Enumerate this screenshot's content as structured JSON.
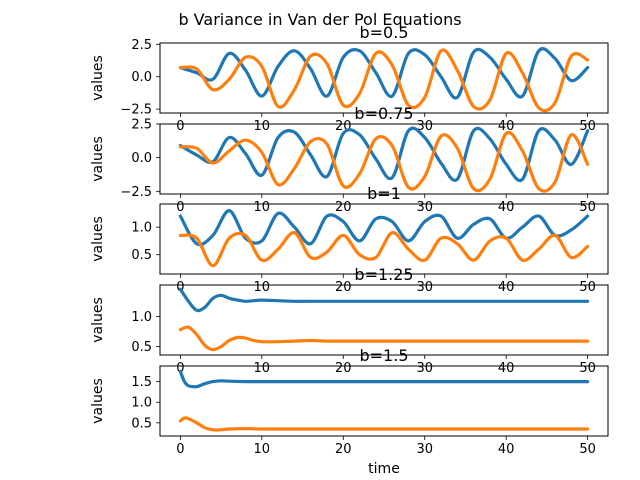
{
  "figure_title": "b Variance in Van der Pol Equations",
  "colors": {
    "series_0": "#1f77b4",
    "series_1": "#ff7f0e"
  },
  "chart_data": [
    {
      "type": "line",
      "title": "b=0.5",
      "xlabel": "",
      "ylabel": "values",
      "xlim": [
        -2.5,
        52.5
      ],
      "ylim": [
        -2.8,
        2.6
      ],
      "xticks": [
        0,
        10,
        20,
        30,
        40,
        50
      ],
      "xtick_labels": [
        "0",
        "10",
        "20",
        "30",
        "40",
        "50"
      ],
      "yticks": [
        -2.5,
        0.0,
        2.5
      ],
      "ytick_labels": [
        "−2.5",
        "0.0",
        "2.5"
      ],
      "x": [
        0,
        2,
        4,
        6,
        8,
        10,
        12,
        14,
        16,
        18,
        20,
        22,
        24,
        26,
        28,
        30,
        32,
        34,
        36,
        38,
        40,
        42,
        44,
        46,
        48,
        50
      ],
      "series": [
        {
          "values": [
            0.7,
            0.3,
            -0.2,
            1.8,
            0.5,
            -1.5,
            0.8,
            2.0,
            0.6,
            -1.5,
            1.5,
            2.0,
            0.3,
            -1.5,
            1.8,
            1.7,
            0,
            -1.6,
            1.9,
            1.5,
            -0.2,
            -1.5,
            2.0,
            1.4,
            -0.3,
            0.7
          ]
        },
        {
          "values": [
            0.7,
            0.6,
            -1.0,
            -0.2,
            1.5,
            0.8,
            -2.3,
            -1.0,
            1.6,
            1.0,
            -2.2,
            -1.3,
            1.8,
            0.9,
            -2.2,
            -1.6,
            2.0,
            0.5,
            -2.3,
            -1.8,
            1.8,
            0.3,
            -2.4,
            -2.0,
            1.6,
            1.3
          ]
        }
      ]
    },
    {
      "type": "line",
      "title": "b=0.75",
      "xlabel": "",
      "ylabel": "values",
      "xlim": [
        -2.5,
        52.5
      ],
      "ylim": [
        -2.7,
        2.5
      ],
      "xticks": [
        0,
        10,
        20,
        30,
        40,
        50
      ],
      "xtick_labels": [
        "0",
        "10",
        "20",
        "30",
        "40",
        "50"
      ],
      "yticks": [
        -2.5,
        0.0,
        2.5
      ],
      "ytick_labels": [
        "−2.5",
        "0.0",
        "2.5"
      ],
      "x": [
        0,
        2,
        4,
        6,
        8,
        10,
        12,
        14,
        16,
        18,
        20,
        22,
        24,
        26,
        28,
        30,
        32,
        34,
        36,
        38,
        40,
        42,
        44,
        46,
        48,
        50
      ],
      "series": [
        {
          "values": [
            0.9,
            0.2,
            -0.3,
            1.5,
            0.3,
            -1.3,
            1.5,
            1.9,
            0.2,
            -1.4,
            1.8,
            1.7,
            -0.1,
            -1.5,
            2.0,
            1.5,
            -0.4,
            -1.6,
            2.0,
            1.4,
            -0.5,
            -1.6,
            2.0,
            1.3,
            -0.5,
            2.0
          ]
        },
        {
          "values": [
            0.8,
            0.7,
            -0.4,
            0.5,
            1.3,
            0.4,
            -2.0,
            -0.8,
            1.2,
            1.0,
            -2.1,
            -1.2,
            1.4,
            0.9,
            -2.2,
            -1.4,
            1.6,
            0.7,
            -2.3,
            -1.6,
            1.8,
            0.5,
            -2.3,
            -1.8,
            1.7,
            -0.5
          ]
        }
      ]
    },
    {
      "type": "line",
      "title": "b=1",
      "xlabel": "",
      "ylabel": "values",
      "xlim": [
        -2.5,
        52.5
      ],
      "ylim": [
        0.15,
        1.42
      ],
      "xticks": [
        0,
        10,
        20,
        30,
        40,
        50
      ],
      "xtick_labels": [
        "0",
        "10",
        "20",
        "30",
        "40",
        "50"
      ],
      "yticks": [
        0.5,
        1.0
      ],
      "ytick_labels": [
        "0.5",
        "1.0"
      ],
      "x": [
        0,
        2,
        4,
        6,
        8,
        10,
        12,
        14,
        16,
        18,
        20,
        22,
        24,
        26,
        28,
        30,
        32,
        34,
        36,
        38,
        40,
        42,
        44,
        46,
        48,
        50
      ],
      "series": [
        {
          "values": [
            1.2,
            0.7,
            0.85,
            1.3,
            0.8,
            0.75,
            1.25,
            1.0,
            0.7,
            1.2,
            1.1,
            0.75,
            1.15,
            1.1,
            0.75,
            1.1,
            1.2,
            0.8,
            1.05,
            1.15,
            0.8,
            1.0,
            1.2,
            0.85,
            0.95,
            1.2
          ]
        },
        {
          "values": [
            0.85,
            0.8,
            0.3,
            0.8,
            0.85,
            0.4,
            0.6,
            0.9,
            0.45,
            0.55,
            0.85,
            0.5,
            0.45,
            0.9,
            0.6,
            0.4,
            0.8,
            0.7,
            0.4,
            0.75,
            0.8,
            0.4,
            0.6,
            0.85,
            0.45,
            0.65
          ]
        }
      ]
    },
    {
      "type": "line",
      "title": "b=1.25",
      "xlabel": "",
      "ylabel": "values",
      "xlim": [
        -2.5,
        52.5
      ],
      "ylim": [
        0.36,
        1.52
      ],
      "xticks": [
        0,
        10,
        20,
        30,
        40,
        50
      ],
      "xtick_labels": [
        "0",
        "10",
        "20",
        "30",
        "40",
        "50"
      ],
      "yticks": [
        0.5,
        1.0
      ],
      "ytick_labels": [
        "0.5",
        "1.0"
      ],
      "x": [
        0,
        1,
        2,
        3,
        4,
        5,
        6,
        7,
        8,
        9,
        10,
        12,
        14,
        16,
        18,
        20,
        25,
        30,
        35,
        40,
        45,
        50
      ],
      "series": [
        {
          "values": [
            1.45,
            1.25,
            1.1,
            1.15,
            1.3,
            1.35,
            1.3,
            1.27,
            1.25,
            1.26,
            1.27,
            1.26,
            1.25,
            1.25,
            1.25,
            1.25,
            1.25,
            1.25,
            1.25,
            1.25,
            1.25,
            1.25
          ]
        },
        {
          "values": [
            0.78,
            0.82,
            0.7,
            0.52,
            0.45,
            0.5,
            0.6,
            0.65,
            0.64,
            0.6,
            0.58,
            0.58,
            0.59,
            0.6,
            0.59,
            0.59,
            0.59,
            0.59,
            0.59,
            0.59,
            0.59,
            0.59
          ]
        }
      ]
    },
    {
      "type": "line",
      "title": "b=1.5",
      "xlabel": "time",
      "ylabel": "values",
      "xlim": [
        -2.5,
        52.5
      ],
      "ylim": [
        0.18,
        1.88
      ],
      "xticks": [
        0,
        10,
        20,
        30,
        40,
        50
      ],
      "xtick_labels": [
        "0",
        "10",
        "20",
        "30",
        "40",
        "50"
      ],
      "yticks": [
        0.5,
        1.0,
        1.5
      ],
      "ytick_labels": [
        "0.5",
        "1.0",
        "1.5"
      ],
      "x": [
        0,
        0.5,
        1,
        2,
        3,
        4,
        5,
        6,
        8,
        10,
        15,
        20,
        30,
        40,
        50
      ],
      "series": [
        {
          "values": [
            1.75,
            1.5,
            1.4,
            1.38,
            1.45,
            1.5,
            1.52,
            1.51,
            1.5,
            1.5,
            1.5,
            1.5,
            1.5,
            1.5,
            1.5
          ]
        },
        {
          "values": [
            0.55,
            0.62,
            0.6,
            0.5,
            0.38,
            0.33,
            0.33,
            0.35,
            0.36,
            0.35,
            0.35,
            0.35,
            0.35,
            0.35,
            0.35
          ]
        }
      ]
    }
  ]
}
